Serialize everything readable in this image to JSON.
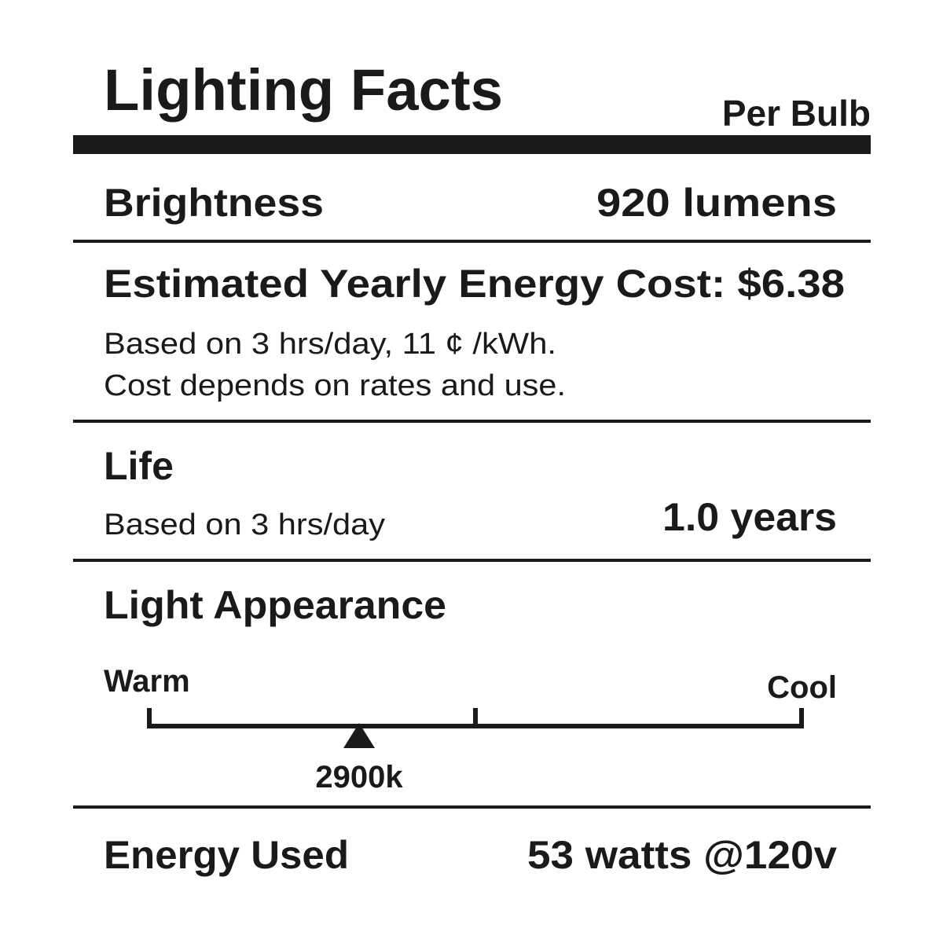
{
  "header": {
    "title": "Lighting Facts",
    "subtitle": "Per Bulb"
  },
  "brightness": {
    "label": "Brightness",
    "value": "920 lumens"
  },
  "cost": {
    "label": "Estimated Yearly Energy Cost: $6.38",
    "notes": [
      "Based on 3 hrs/day, 11 ¢ /kWh.",
      "Cost depends on rates and use."
    ]
  },
  "life": {
    "label": "Life",
    "note": "Based on 3 hrs/day",
    "value": "1.0 years"
  },
  "appearance": {
    "label": "Light Appearance",
    "warm": "Warm",
    "cool": "Cool",
    "marker": "2900k"
  },
  "energy": {
    "label": "Energy Used",
    "value": "53 watts @120v"
  }
}
